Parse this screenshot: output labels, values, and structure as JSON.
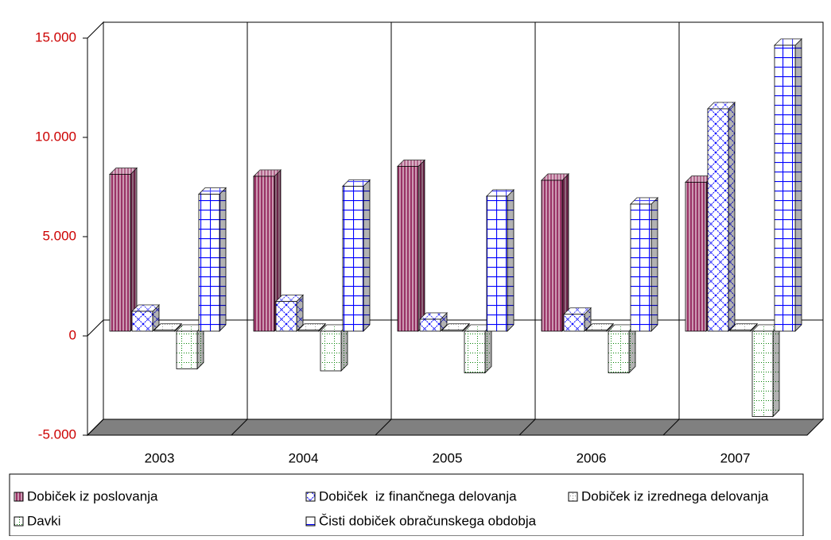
{
  "chart_data": {
    "type": "bar3d",
    "categories": [
      "2003",
      "2004",
      "2005",
      "2006",
      "2007"
    ],
    "series": [
      {
        "name": "Dobiček iz poslovanja",
        "color": "#993366",
        "values": [
          7900,
          7800,
          8300,
          7600,
          7500
        ]
      },
      {
        "name": "Dobiček  iz finančnega delovanja",
        "color": "#0000ff",
        "values": [
          1000,
          1500,
          600,
          850,
          11200
        ]
      },
      {
        "name": "Dobiček iz izrednega delovanja",
        "color": "#808080",
        "values": [
          50,
          50,
          50,
          50,
          50
        ]
      },
      {
        "name": "Davki",
        "color": "#008000",
        "values": [
          -1900,
          -2000,
          -2100,
          -2100,
          -4300
        ]
      },
      {
        "name": "Čisti dobiček obračunskega obdobja",
        "color": "#0000ff",
        "values": [
          6900,
          7300,
          6800,
          6400,
          14400
        ]
      }
    ],
    "ylim": [
      -5000,
      15000
    ],
    "yticks": [
      {
        "value": -5000,
        "label": "-5.000"
      },
      0,
      {
        "value": 5000,
        "label": "5.000"
      },
      {
        "value": 10000,
        "label": "10.000"
      },
      {
        "value": 15000,
        "label": "15.000"
      }
    ],
    "tick_color": "#cc0000"
  }
}
